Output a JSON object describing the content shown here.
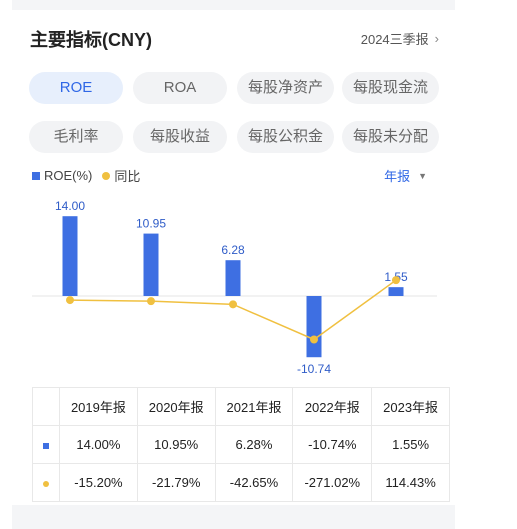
{
  "header": {
    "title": "主要指标(CNY)",
    "report": "2024三季报",
    "chevron": "›"
  },
  "tabs": [
    {
      "label": "ROE",
      "active": true
    },
    {
      "label": "ROA",
      "active": false
    },
    {
      "label": "每股净资产",
      "active": false
    },
    {
      "label": "每股现金流",
      "active": false
    },
    {
      "label": "毛利率",
      "active": false
    },
    {
      "label": "每股收益",
      "active": false
    },
    {
      "label": "每股公积金",
      "active": false
    },
    {
      "label": "每股未分配",
      "active": false
    }
  ],
  "legend": {
    "series1": "ROE(%)",
    "series2": "同比"
  },
  "period": {
    "label": "年报",
    "caret": "▼"
  },
  "colors": {
    "bar": "#3e6fe2",
    "line": "#f0c040",
    "accent": "#2f67e6",
    "negative": "#1f9a4c",
    "positive": "#e23a3a"
  },
  "chart_data": {
    "type": "bar",
    "categories": [
      "2019年报",
      "2020年报",
      "2021年报",
      "2022年报",
      "2023年报"
    ],
    "series": [
      {
        "name": "ROE(%)",
        "type": "bar",
        "values": [
          14.0,
          10.95,
          6.28,
          -10.74,
          1.55
        ],
        "labels": [
          "14.00",
          "10.95",
          "6.28",
          "-10.74",
          "1.55"
        ]
      },
      {
        "name": "同比",
        "type": "line",
        "values": [
          -15.2,
          -21.79,
          -42.65,
          -271.02,
          114.43
        ]
      }
    ]
  },
  "table": {
    "headers": [
      "2019年报",
      "2020年报",
      "2021年报",
      "2022年报",
      "2023年报"
    ],
    "row1": [
      "14.00%",
      "10.95%",
      "6.28%",
      "-10.74%",
      "1.55%"
    ],
    "row2": [
      "-15.20%",
      "-21.79%",
      "-42.65%",
      "-271.02%",
      "114.43%"
    ]
  }
}
